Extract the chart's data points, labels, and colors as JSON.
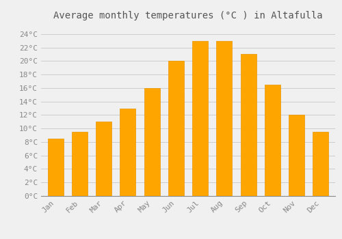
{
  "title": "Average monthly temperatures (°C ) in Altafulla",
  "months": [
    "Jan",
    "Feb",
    "Mar",
    "Apr",
    "May",
    "Jun",
    "Jul",
    "Aug",
    "Sep",
    "Oct",
    "Nov",
    "Dec"
  ],
  "values": [
    8.5,
    9.5,
    11.0,
    13.0,
    16.0,
    20.0,
    23.0,
    23.0,
    21.0,
    16.5,
    12.0,
    9.5
  ],
  "bar_color": "#FFA500",
  "bar_edge_color": "#E89400",
  "background_color": "#F0F0F0",
  "grid_color": "#CCCCCC",
  "yticks": [
    0,
    2,
    4,
    6,
    8,
    10,
    12,
    14,
    16,
    18,
    20,
    22,
    24
  ],
  "ylim": [
    0,
    25.5
  ],
  "title_fontsize": 10,
  "tick_fontsize": 8,
  "font_family": "monospace",
  "tick_color": "#888888",
  "title_color": "#555555"
}
